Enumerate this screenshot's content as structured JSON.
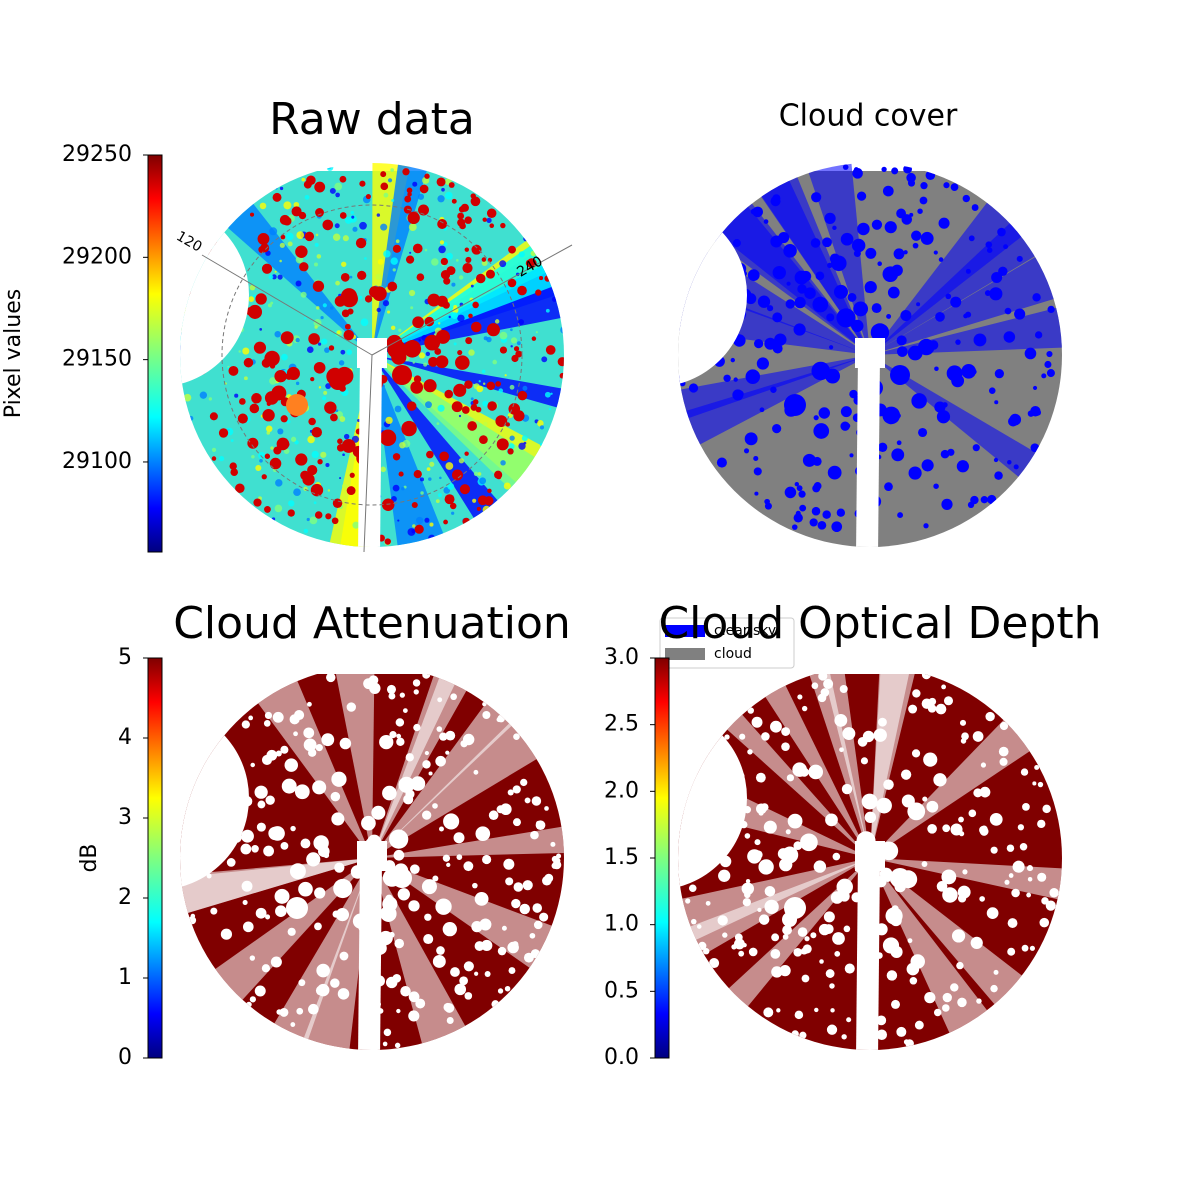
{
  "chart_data": [
    {
      "type": "image",
      "title": "Raw data",
      "colormap": "jet",
      "colorbar": {
        "label": "Pixel values",
        "ylim": [
          29056,
          29250
        ],
        "yticks": [
          29100,
          29150,
          29200,
          29250
        ]
      },
      "annotations": [
        "120",
        "240"
      ]
    },
    {
      "type": "image",
      "title": "Cloud cover",
      "legend": "lower left",
      "series": [
        {
          "name": "clear sky",
          "color": "#0000ff"
        },
        {
          "name": "cloud",
          "color": "#808080"
        }
      ]
    },
    {
      "type": "image",
      "title": "Cloud Attenuation",
      "color": "#800000",
      "colorbar": {
        "label": "dB",
        "ylim": [
          0,
          5
        ],
        "yticks": [
          0,
          1,
          2,
          3,
          4,
          5
        ]
      }
    },
    {
      "type": "image",
      "title": "Cloud Optical Depth",
      "color": "#800000",
      "colorbar": {
        "ylim": [
          0,
          3
        ],
        "yticks": [
          {
            "value": 0,
            "label": "0.0"
          },
          0.5,
          {
            "value": 1,
            "label": "1.0"
          },
          1.5,
          {
            "value": 2,
            "label": "2.0"
          },
          2.5,
          {
            "value": 3,
            "label": "3.0"
          }
        ]
      }
    }
  ]
}
